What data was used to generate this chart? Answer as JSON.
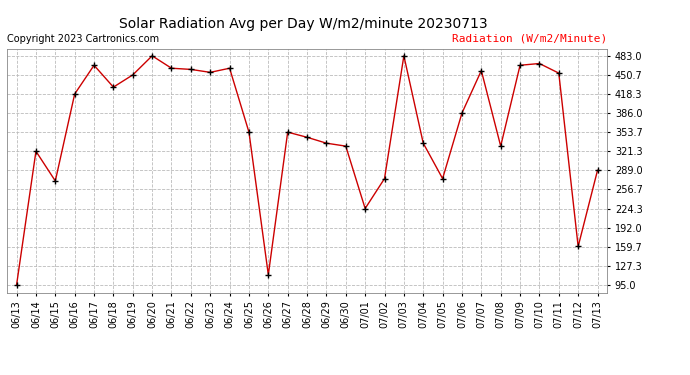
{
  "title": "Solar Radiation Avg per Day W/m2/minute 20230713",
  "copyright_text": "Copyright 2023 Cartronics.com",
  "legend_label": "Radiation (W/m2/Minute)",
  "dates": [
    "06/13",
    "06/14",
    "06/15",
    "06/16",
    "06/17",
    "06/18",
    "06/19",
    "06/20",
    "06/21",
    "06/22",
    "06/23",
    "06/24",
    "06/25",
    "06/26",
    "06/27",
    "06/28",
    "06/29",
    "06/30",
    "07/01",
    "07/02",
    "07/03",
    "07/04",
    "07/05",
    "07/06",
    "07/07",
    "07/08",
    "07/09",
    "07/10",
    "07/11",
    "07/12",
    "07/13"
  ],
  "values": [
    95.0,
    321.3,
    271.0,
    418.3,
    467.0,
    430.0,
    450.7,
    483.0,
    462.0,
    460.0,
    455.0,
    462.0,
    353.7,
    112.0,
    353.7,
    345.0,
    335.0,
    330.0,
    224.3,
    275.0,
    483.0,
    335.0,
    275.0,
    386.0,
    458.0,
    330.0,
    467.0,
    470.0,
    453.7,
    160.0,
    289.0
  ],
  "y_ticks": [
    95.0,
    127.3,
    159.7,
    192.0,
    224.3,
    256.7,
    289.0,
    321.3,
    353.7,
    386.0,
    418.3,
    450.7,
    483.0
  ],
  "ylim": [
    82.0,
    495.0
  ],
  "line_color": "#cc0000",
  "marker_color": "#000000",
  "background_color": "#ffffff",
  "grid_color": "#bbbbbb",
  "title_fontsize": 10,
  "copyright_fontsize": 7,
  "legend_fontsize": 8,
  "tick_fontsize": 7
}
